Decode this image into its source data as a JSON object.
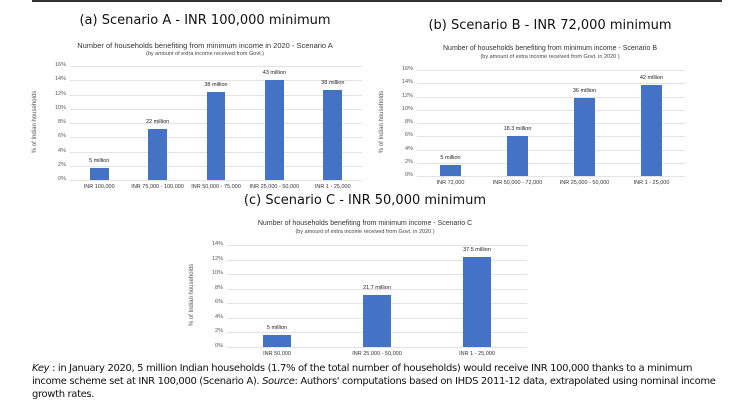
{
  "panels": [
    {
      "panel_title": "(a) Scenario A - INR 100,000 minimum"
    },
    {
      "panel_title": "(b) Scenario B - INR 72,000 minimum"
    },
    {
      "panel_title": "(c) Scenario C - INR 50,000 minimum"
    }
  ],
  "chart_data": [
    {
      "type": "bar",
      "title": "Number of households benefiting from minimum income in 2020 - Scenario A",
      "subtitle": "(by amount of extra income received from Govt.)",
      "xlabel": "",
      "ylabel": "% of Indian households",
      "categories": [
        "INR 100,000",
        "INR 75,000 - 100,000",
        "INR 50,000 - 75,000",
        "INR 25,000 - 50,000",
        "INR 1 - 25,000"
      ],
      "values": [
        1.7,
        7.1,
        12.3,
        14.0,
        12.6
      ],
      "data_labels": [
        "5 million",
        "22 million",
        "38 million",
        "43 million",
        "38 million"
      ],
      "yticks": [
        "0%",
        "2%",
        "4%",
        "6%",
        "8%",
        "10%",
        "12%",
        "14%",
        "16%"
      ],
      "ylim": [
        0,
        16
      ],
      "grid": true,
      "color": "#4472c4"
    },
    {
      "type": "bar",
      "title": "Number of households benefiting from minimum income - Scenario B",
      "subtitle": "(by amount of extra income received from Govt. in 2020 )",
      "xlabel": "",
      "ylabel": "% of Indian households",
      "categories": [
        "INR 72,000",
        "INR 50,000 - 72,000",
        "INR 25,000 - 50,000",
        "INR 1 - 25,000"
      ],
      "values": [
        1.7,
        6.0,
        11.8,
        13.8
      ],
      "data_labels": [
        "5 million",
        "18.3 million",
        "36 million",
        "42 million"
      ],
      "yticks": [
        "0%",
        "2%",
        "4%",
        "6%",
        "8%",
        "10%",
        "12%",
        "14%",
        "16%"
      ],
      "ylim": [
        0,
        16
      ],
      "grid": true,
      "color": "#4472c4"
    },
    {
      "type": "bar",
      "title": "Number of households benefiting from minimum income - Scenario C",
      "subtitle": "(by amount of extra income received from Govt. in 2020 )",
      "xlabel": "",
      "ylabel": "% of Indian households",
      "categories": [
        "INR 50,000",
        "INR 25,000 - 50,000",
        "INR 1 - 25,000"
      ],
      "values": [
        1.7,
        7.1,
        12.3
      ],
      "data_labels": [
        "5 million",
        "21.7 million",
        "37.5 million"
      ],
      "yticks": [
        "0%",
        "2%",
        "4%",
        "6%",
        "8%",
        "10%",
        "12%",
        "14%"
      ],
      "ylim": [
        0,
        14
      ],
      "grid": true,
      "color": "#4472c4"
    }
  ],
  "key": {
    "key_label": "Key",
    "key_text": " : in January 2020, 5 million Indian households (1.7% of the total number of households) would receive INR 100,000 thanks to a minimum income scheme set at INR 100,000 (Scenario A). ",
    "source_label": "Source",
    "source_text": ": Authors' computations based on IHDS 2011-12 data, extrapolated using nominal income growth rates."
  }
}
